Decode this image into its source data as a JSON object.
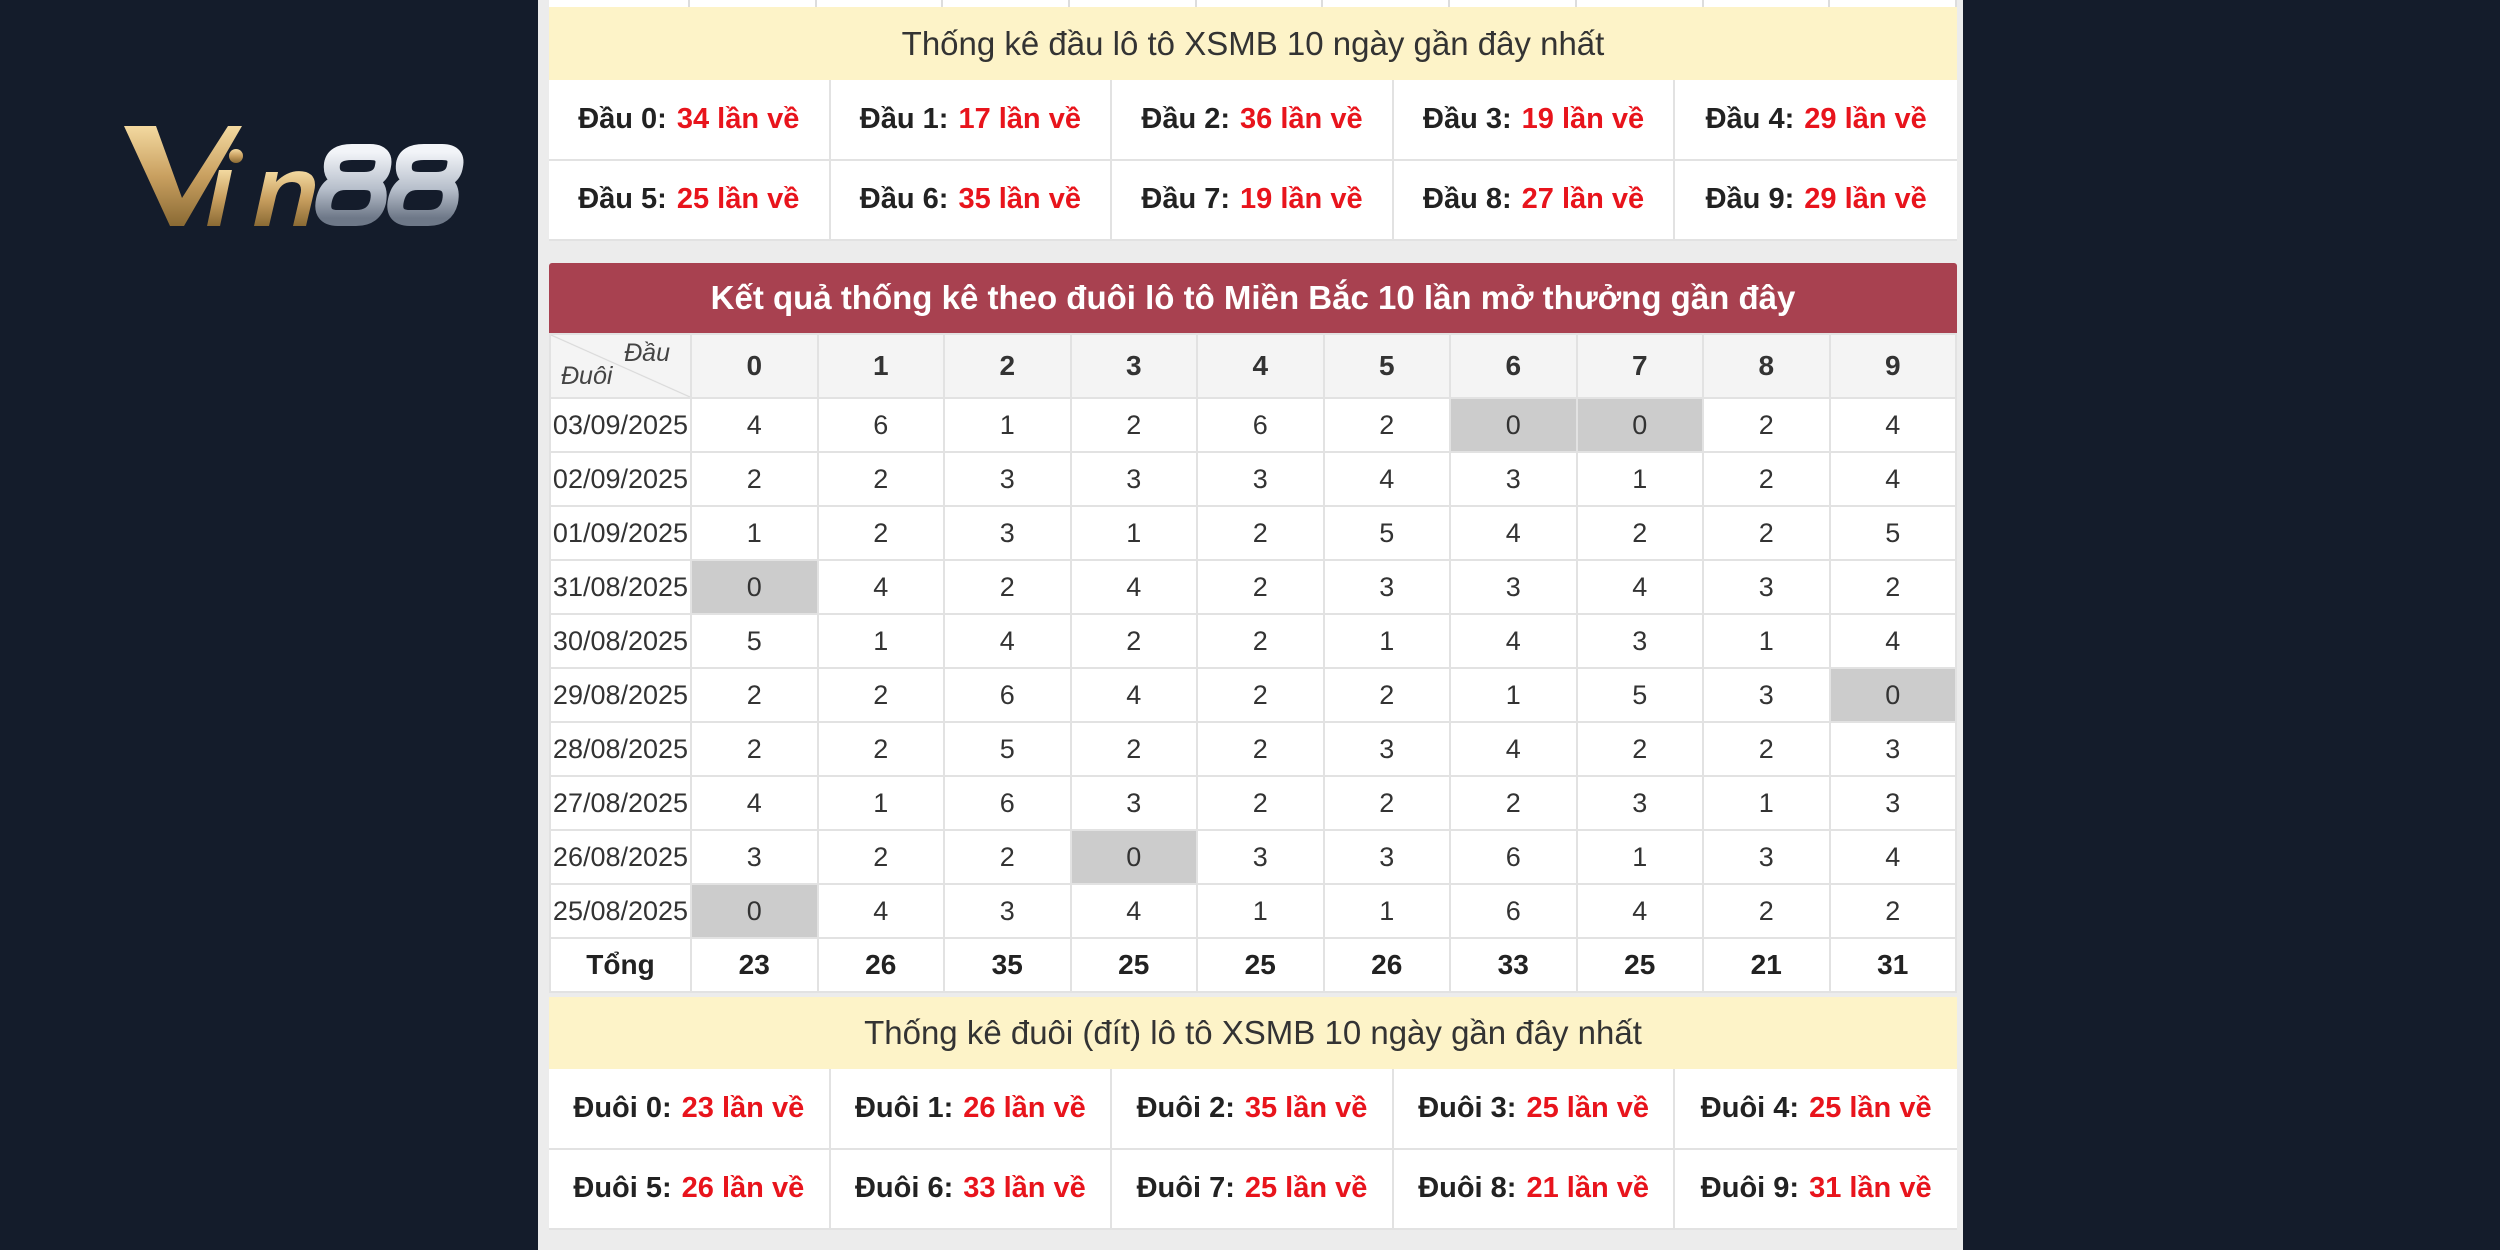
{
  "brand": {
    "logo_text": "Vin88",
    "colors": {
      "background": "#141c2b",
      "gold": "#c9a060",
      "silver": "#b8c0cc"
    }
  },
  "dau_stats": {
    "title": "Thống kê đầu lô tô XSMB 10 ngày gần đây nhất",
    "items": [
      {
        "label": "Đầu 0:",
        "value": "34 lần về"
      },
      {
        "label": "Đầu 1:",
        "value": "17 lần về"
      },
      {
        "label": "Đầu 2:",
        "value": "36 lần về"
      },
      {
        "label": "Đầu 3:",
        "value": "19 lần về"
      },
      {
        "label": "Đầu 4:",
        "value": "29 lần về"
      },
      {
        "label": "Đầu 5:",
        "value": "25 lần về"
      },
      {
        "label": "Đầu 6:",
        "value": "35 lần về"
      },
      {
        "label": "Đầu 7:",
        "value": "19 lần về"
      },
      {
        "label": "Đầu 8:",
        "value": "27 lần về"
      },
      {
        "label": "Đầu 9:",
        "value": "29 lần về"
      }
    ]
  },
  "duoi_table": {
    "title": "Kết quả thống kê theo đuôi lô tô Miền Bắc 10 lần mở thưởng gần đây",
    "corner_top": "Đầu",
    "corner_bottom": "Đuôi",
    "columns": [
      "0",
      "1",
      "2",
      "3",
      "4",
      "5",
      "6",
      "7",
      "8",
      "9"
    ],
    "rows": [
      {
        "date": "03/09/2025",
        "values": [
          "4",
          "6",
          "1",
          "2",
          "6",
          "2",
          "0",
          "0",
          "2",
          "4"
        ]
      },
      {
        "date": "02/09/2025",
        "values": [
          "2",
          "2",
          "3",
          "3",
          "3",
          "4",
          "3",
          "1",
          "2",
          "4"
        ]
      },
      {
        "date": "01/09/2025",
        "values": [
          "1",
          "2",
          "3",
          "1",
          "2",
          "5",
          "4",
          "2",
          "2",
          "5"
        ]
      },
      {
        "date": "31/08/2025",
        "values": [
          "0",
          "4",
          "2",
          "4",
          "2",
          "3",
          "3",
          "4",
          "3",
          "2"
        ]
      },
      {
        "date": "30/08/2025",
        "values": [
          "5",
          "1",
          "4",
          "2",
          "2",
          "1",
          "4",
          "3",
          "1",
          "4"
        ]
      },
      {
        "date": "29/08/2025",
        "values": [
          "2",
          "2",
          "6",
          "4",
          "2",
          "2",
          "1",
          "5",
          "3",
          "0"
        ]
      },
      {
        "date": "28/08/2025",
        "values": [
          "2",
          "2",
          "5",
          "2",
          "2",
          "3",
          "4",
          "2",
          "2",
          "3"
        ]
      },
      {
        "date": "27/08/2025",
        "values": [
          "4",
          "1",
          "6",
          "3",
          "2",
          "2",
          "2",
          "3",
          "1",
          "3"
        ]
      },
      {
        "date": "26/08/2025",
        "values": [
          "3",
          "2",
          "2",
          "0",
          "3",
          "3",
          "6",
          "1",
          "3",
          "4"
        ]
      },
      {
        "date": "25/08/2025",
        "values": [
          "0",
          "4",
          "3",
          "4",
          "1",
          "1",
          "6",
          "4",
          "2",
          "2"
        ]
      }
    ],
    "total_label": "Tổng",
    "totals": [
      "23",
      "26",
      "35",
      "25",
      "25",
      "26",
      "33",
      "25",
      "21",
      "31"
    ]
  },
  "duoi_stats": {
    "title": "Thống kê đuôi (đít) lô tô XSMB 10 ngày gần đây nhất",
    "items": [
      {
        "label": "Đuôi 0:",
        "value": "23 lần về"
      },
      {
        "label": "Đuôi 1:",
        "value": "26 lần về"
      },
      {
        "label": "Đuôi 2:",
        "value": "35 lần về"
      },
      {
        "label": "Đuôi 3:",
        "value": "25 lần về"
      },
      {
        "label": "Đuôi 4:",
        "value": "25 lần về"
      },
      {
        "label": "Đuôi 5:",
        "value": "26 lần về"
      },
      {
        "label": "Đuôi 6:",
        "value": "33 lần về"
      },
      {
        "label": "Đuôi 7:",
        "value": "25 lần về"
      },
      {
        "label": "Đuôi 8:",
        "value": "21 lần về"
      },
      {
        "label": "Đuôi 9:",
        "value": "31 lần về"
      }
    ]
  },
  "colors": {
    "header_red": "#a84150",
    "title_yellow": "#fdf3c8",
    "value_red": "#e8141c",
    "zero_gray": "#cccccc"
  }
}
